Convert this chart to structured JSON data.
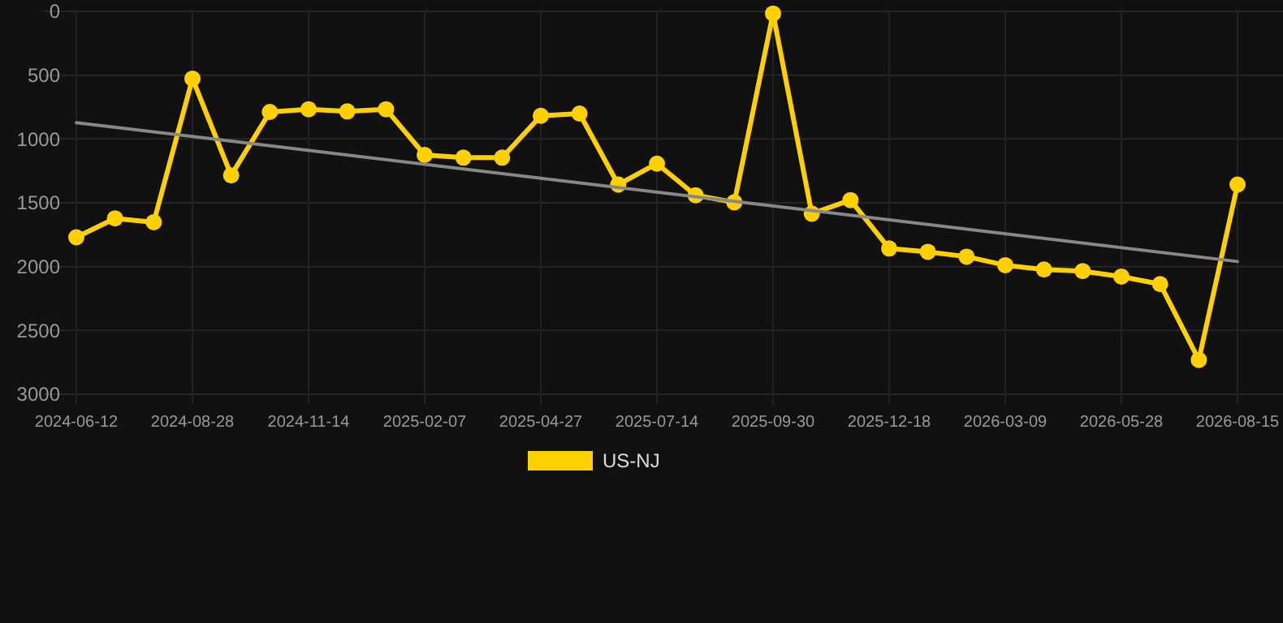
{
  "chart_data": {
    "type": "line",
    "categories": [
      "2024-06-12",
      null,
      null,
      "2024-08-28",
      null,
      null,
      "2024-11-14",
      null,
      null,
      "2025-02-07",
      null,
      null,
      "2025-04-27",
      null,
      null,
      "2025-07-14",
      null,
      null,
      "2025-09-30",
      null,
      null,
      "2025-12-18",
      null,
      null,
      "2026-03-09",
      null,
      null,
      "2026-05-28",
      null,
      null,
      "2026-08-15"
    ],
    "ylim": [
      3000,
      0
    ],
    "yticks": [
      0,
      500,
      1000,
      1500,
      2000,
      2500,
      3000
    ],
    "grid": true,
    "legend": "bottom",
    "marker": "circle",
    "series": [
      {
        "name": "US-NJ",
        "color": "#ffd000",
        "values": [
          1770,
          1622,
          1652,
          527,
          1285,
          788,
          767,
          784,
          767,
          1125,
          1146,
          1146,
          818,
          801,
          1357,
          1193,
          1441,
          1496,
          17,
          1585,
          1479,
          1858,
          1884,
          1922,
          1989,
          2023,
          2035,
          2078,
          2137,
          2731,
          1357
        ]
      },
      {
        "type": "line",
        "color": "#888888",
        "marker": "none",
        "values": [
          872,
          null,
          null,
          null,
          null,
          null,
          null,
          null,
          null,
          null,
          null,
          null,
          null,
          null,
          null,
          null,
          null,
          null,
          null,
          null,
          null,
          null,
          null,
          null,
          null,
          null,
          null,
          null,
          null,
          null,
          1960
        ]
      }
    ]
  }
}
